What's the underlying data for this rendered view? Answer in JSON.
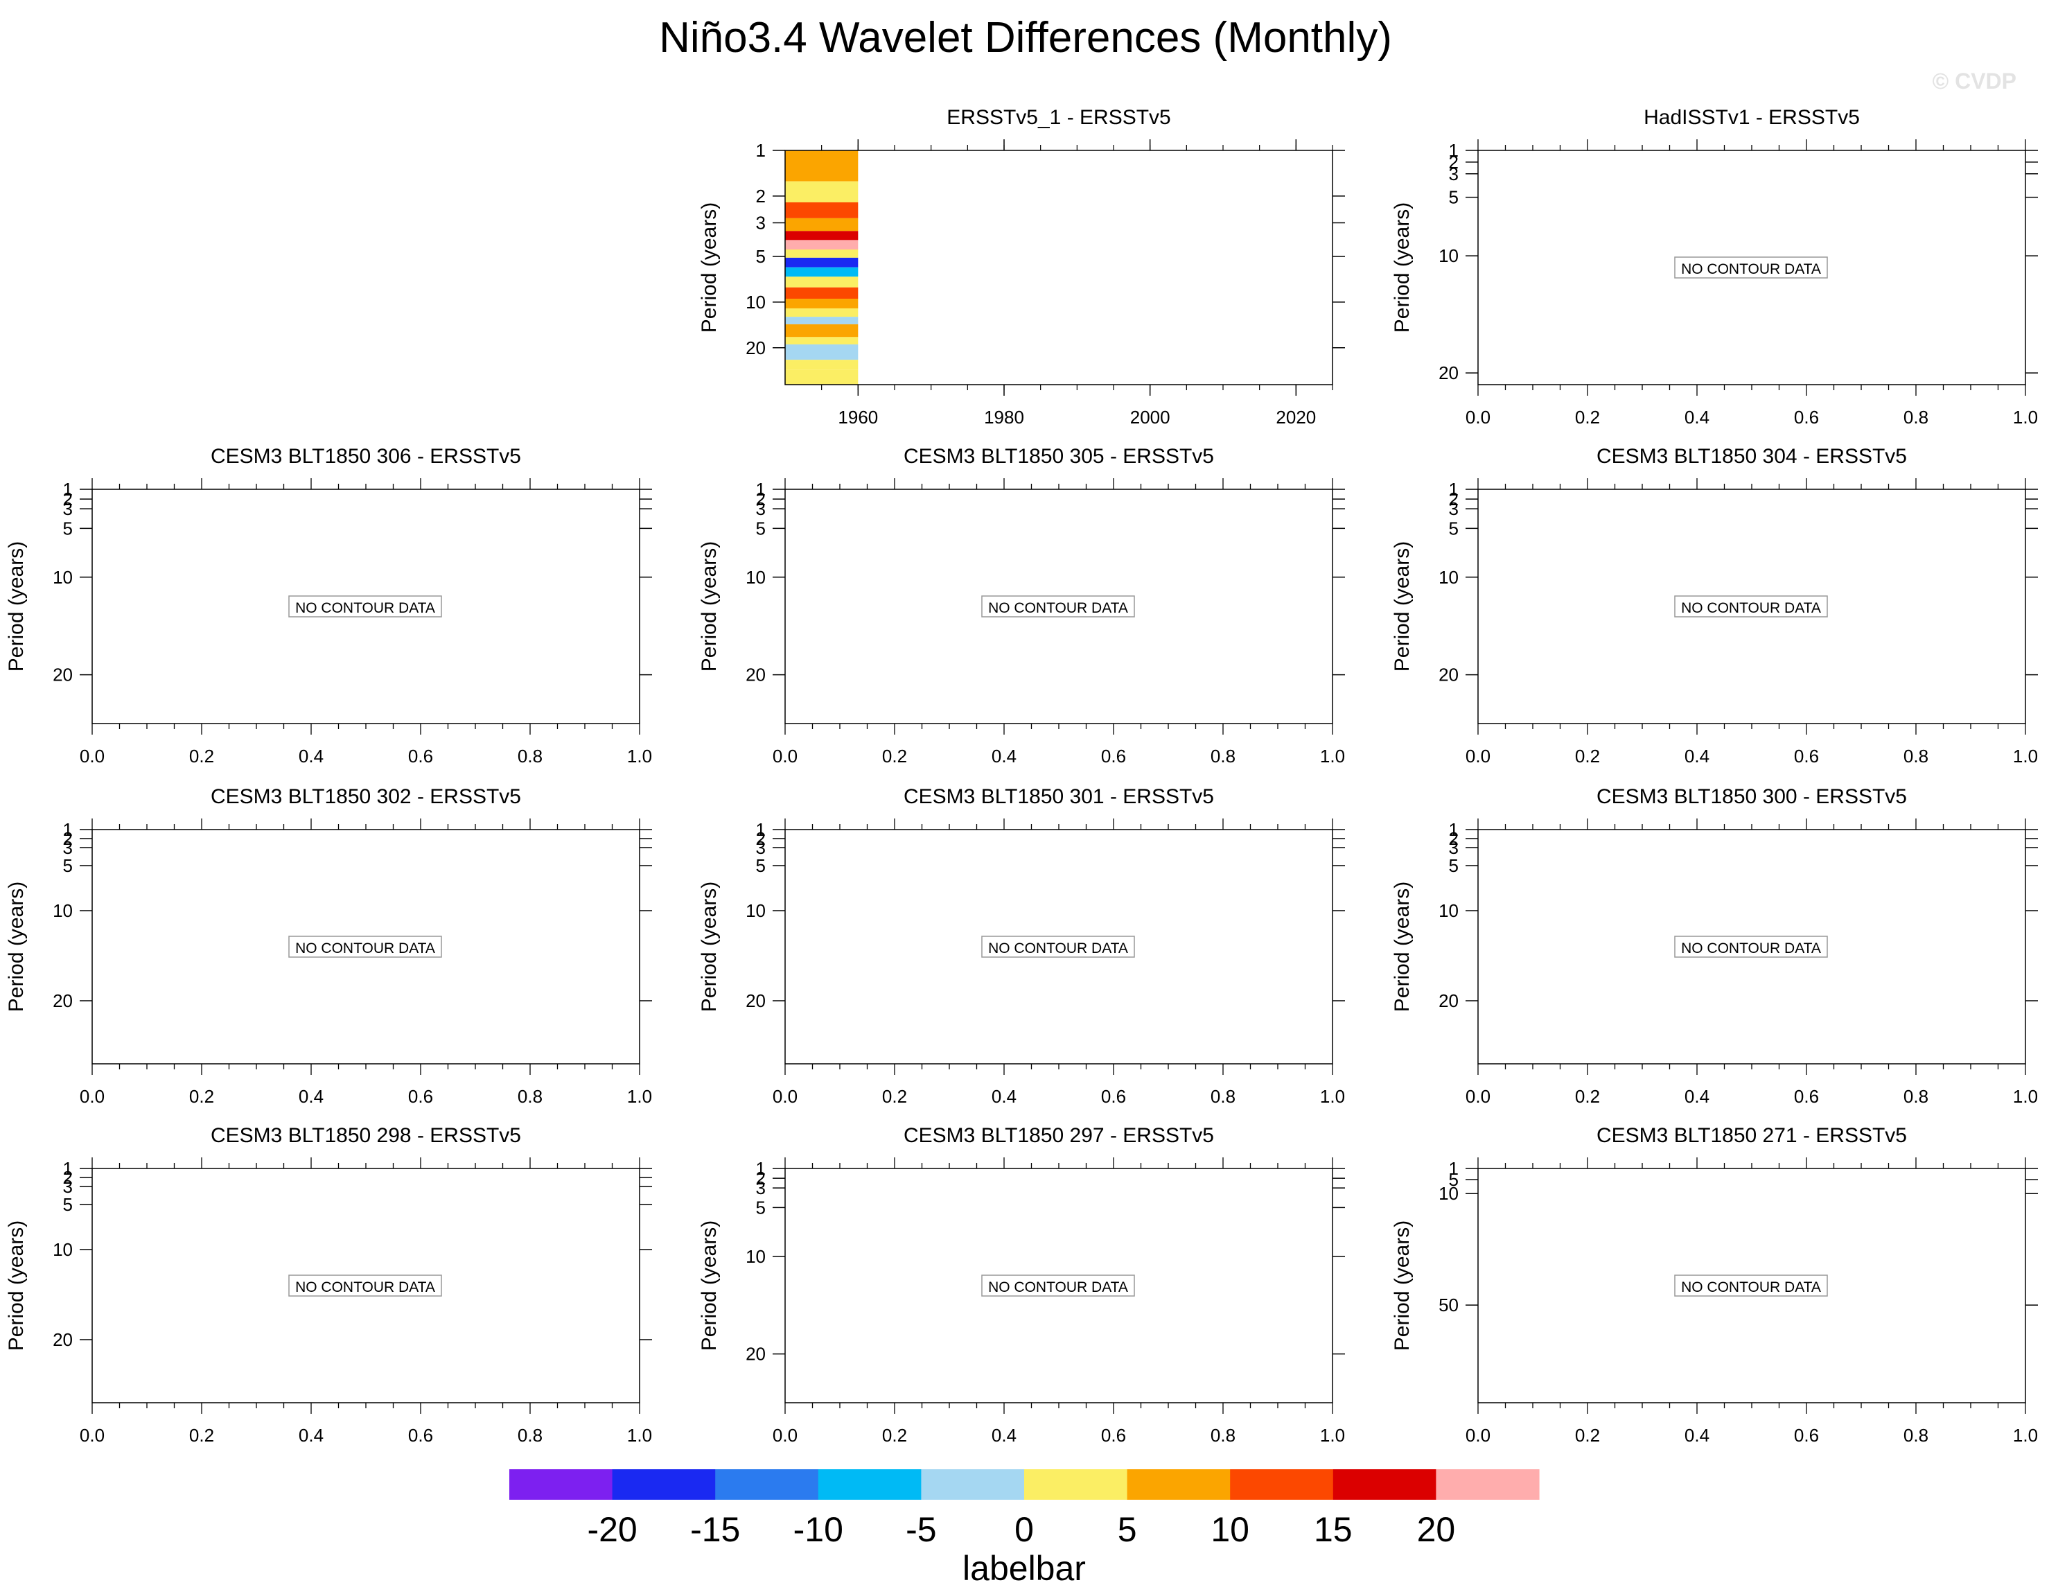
{
  "title": "Niño3.4 Wavelet Differences (Monthly)",
  "watermark": "© CVDP",
  "no_data_label": "NO CONTOUR DATA",
  "y_axis_label": "Period (years)",
  "chart_data": [
    {
      "id": "ersstv5_1",
      "type": "contour",
      "title": "ERSSTv5_1 - ERSSTv5",
      "xlabel": "",
      "ylabel": "Period (years)",
      "xlim": [
        1950,
        2025
      ],
      "x_ticks": [
        1960,
        1980,
        2000,
        2020
      ],
      "y_scale": "log",
      "ylim": [
        1,
        35
      ],
      "y_ticks": [
        1,
        2,
        3,
        5,
        10,
        20
      ],
      "data_x_range": [
        1950,
        1960
      ],
      "has_data": true,
      "bands": [
        {
          "period_range": [
            1.0,
            1.6
          ],
          "value": 5
        },
        {
          "period_range": [
            1.6,
            2.2
          ],
          "value": 0
        },
        {
          "period_range": [
            2.2,
            2.8
          ],
          "value": 10
        },
        {
          "period_range": [
            2.8,
            3.4
          ],
          "value": 5
        },
        {
          "period_range": [
            3.4,
            3.9
          ],
          "value": 15
        },
        {
          "period_range": [
            3.9,
            4.5
          ],
          "value": 20
        },
        {
          "period_range": [
            4.5,
            5.1
          ],
          "value": 0
        },
        {
          "period_range": [
            5.1,
            5.9
          ],
          "value": -20
        },
        {
          "period_range": [
            5.9,
            6.8
          ],
          "value": -10
        },
        {
          "period_range": [
            6.8,
            8.0
          ],
          "value": 0
        },
        {
          "period_range": [
            8.0,
            9.5
          ],
          "value": 10
        },
        {
          "period_range": [
            9.5,
            11
          ],
          "value": 5
        },
        {
          "period_range": [
            11,
            12.5
          ],
          "value": 0
        },
        {
          "period_range": [
            12.5,
            14
          ],
          "value": -5
        },
        {
          "period_range": [
            14,
            17
          ],
          "value": 5
        },
        {
          "period_range": [
            17,
            19
          ],
          "value": 0
        },
        {
          "period_range": [
            19,
            24
          ],
          "value": -5
        },
        {
          "period_range": [
            24,
            28
          ],
          "value": 0
        },
        {
          "period_range": [
            28,
            35
          ],
          "value": 0
        }
      ]
    },
    {
      "id": "hadisstv1",
      "type": "contour",
      "title": "HadISSTv1 - ERSSTv5",
      "ylabel": "Period (years)",
      "xlim": [
        0,
        1
      ],
      "x_ticks": [
        "0.0",
        "0.2",
        "0.4",
        "0.6",
        "0.8",
        "1.0"
      ],
      "y_scale": "linear",
      "ylim": [
        1,
        21
      ],
      "y_ticks": [
        1,
        2,
        3,
        5,
        10,
        20
      ],
      "has_data": false
    },
    {
      "id": "cesm3_306",
      "type": "contour",
      "title": "CESM3 BLT1850 306 - ERSSTv5",
      "ylabel": "Period (years)",
      "xlim": [
        0,
        1
      ],
      "x_ticks": [
        "0.0",
        "0.2",
        "0.4",
        "0.6",
        "0.8",
        "1.0"
      ],
      "y_scale": "linear",
      "ylim": [
        1,
        25
      ],
      "y_ticks": [
        1,
        2,
        3,
        5,
        10,
        20
      ],
      "has_data": false
    },
    {
      "id": "cesm3_305",
      "type": "contour",
      "title": "CESM3 BLT1850 305 - ERSSTv5",
      "ylabel": "Period (years)",
      "xlim": [
        0,
        1
      ],
      "x_ticks": [
        "0.0",
        "0.2",
        "0.4",
        "0.6",
        "0.8",
        "1.0"
      ],
      "y_scale": "linear",
      "ylim": [
        1,
        25
      ],
      "y_ticks": [
        1,
        2,
        3,
        5,
        10,
        20
      ],
      "has_data": false
    },
    {
      "id": "cesm3_304",
      "type": "contour",
      "title": "CESM3 BLT1850 304 - ERSSTv5",
      "ylabel": "Period (years)",
      "xlim": [
        0,
        1
      ],
      "x_ticks": [
        "0.0",
        "0.2",
        "0.4",
        "0.6",
        "0.8",
        "1.0"
      ],
      "y_scale": "linear",
      "ylim": [
        1,
        25
      ],
      "y_ticks": [
        1,
        2,
        3,
        5,
        10,
        20
      ],
      "has_data": false
    },
    {
      "id": "cesm3_302",
      "type": "contour",
      "title": "CESM3 BLT1850 302 - ERSSTv5",
      "ylabel": "Period (years)",
      "xlim": [
        0,
        1
      ],
      "x_ticks": [
        "0.0",
        "0.2",
        "0.4",
        "0.6",
        "0.8",
        "1.0"
      ],
      "y_scale": "linear",
      "ylim": [
        1,
        27
      ],
      "y_ticks": [
        1,
        2,
        3,
        5,
        10,
        20
      ],
      "has_data": false
    },
    {
      "id": "cesm3_301",
      "type": "contour",
      "title": "CESM3 BLT1850 301 - ERSSTv5",
      "ylabel": "Period (years)",
      "xlim": [
        0,
        1
      ],
      "x_ticks": [
        "0.0",
        "0.2",
        "0.4",
        "0.6",
        "0.8",
        "1.0"
      ],
      "y_scale": "linear",
      "ylim": [
        1,
        27
      ],
      "y_ticks": [
        1,
        2,
        3,
        5,
        10,
        20
      ],
      "has_data": false
    },
    {
      "id": "cesm3_300",
      "type": "contour",
      "title": "CESM3 BLT1850 300 - ERSSTv5",
      "ylabel": "Period (years)",
      "xlim": [
        0,
        1
      ],
      "x_ticks": [
        "0.0",
        "0.2",
        "0.4",
        "0.6",
        "0.8",
        "1.0"
      ],
      "y_scale": "linear",
      "ylim": [
        1,
        27
      ],
      "y_ticks": [
        1,
        2,
        3,
        5,
        10,
        20
      ],
      "has_data": false
    },
    {
      "id": "cesm3_298",
      "type": "contour",
      "title": "CESM3 BLT1850 298 - ERSSTv5",
      "ylabel": "Period (years)",
      "xlim": [
        0,
        1
      ],
      "x_ticks": [
        "0.0",
        "0.2",
        "0.4",
        "0.6",
        "0.8",
        "1.0"
      ],
      "y_scale": "linear",
      "ylim": [
        1,
        27
      ],
      "y_ticks": [
        1,
        2,
        3,
        5,
        10,
        20
      ],
      "has_data": false
    },
    {
      "id": "cesm3_297",
      "type": "contour",
      "title": "CESM3 BLT1850 297 - ERSSTv5",
      "ylabel": "Period (years)",
      "xlim": [
        0,
        1
      ],
      "x_ticks": [
        "0.0",
        "0.2",
        "0.4",
        "0.6",
        "0.8",
        "1.0"
      ],
      "y_scale": "linear",
      "ylim": [
        1,
        25
      ],
      "y_ticks": [
        1,
        2,
        3,
        5,
        10,
        20
      ],
      "has_data": false
    },
    {
      "id": "cesm3_271",
      "type": "contour",
      "title": "CESM3 BLT1850 271 - ERSSTv5",
      "ylabel": "Period (years)",
      "xlim": [
        0,
        1
      ],
      "x_ticks": [
        "0.0",
        "0.2",
        "0.4",
        "0.6",
        "0.8",
        "1.0"
      ],
      "y_scale": "linear",
      "ylim": [
        1,
        85
      ],
      "y_ticks": [
        1,
        5,
        10,
        50
      ],
      "has_data": false
    }
  ],
  "labelbar": {
    "title": "labelbar",
    "levels": [
      -20,
      -15,
      -10,
      -5,
      0,
      5,
      10,
      15,
      20
    ],
    "colors": [
      "#7d20f0",
      "#1a29f2",
      "#2b7bef",
      "#00baf5",
      "#a5d7f2",
      "#fbee64",
      "#fba500",
      "#fc4800",
      "#db0000",
      "#ffadad"
    ]
  }
}
